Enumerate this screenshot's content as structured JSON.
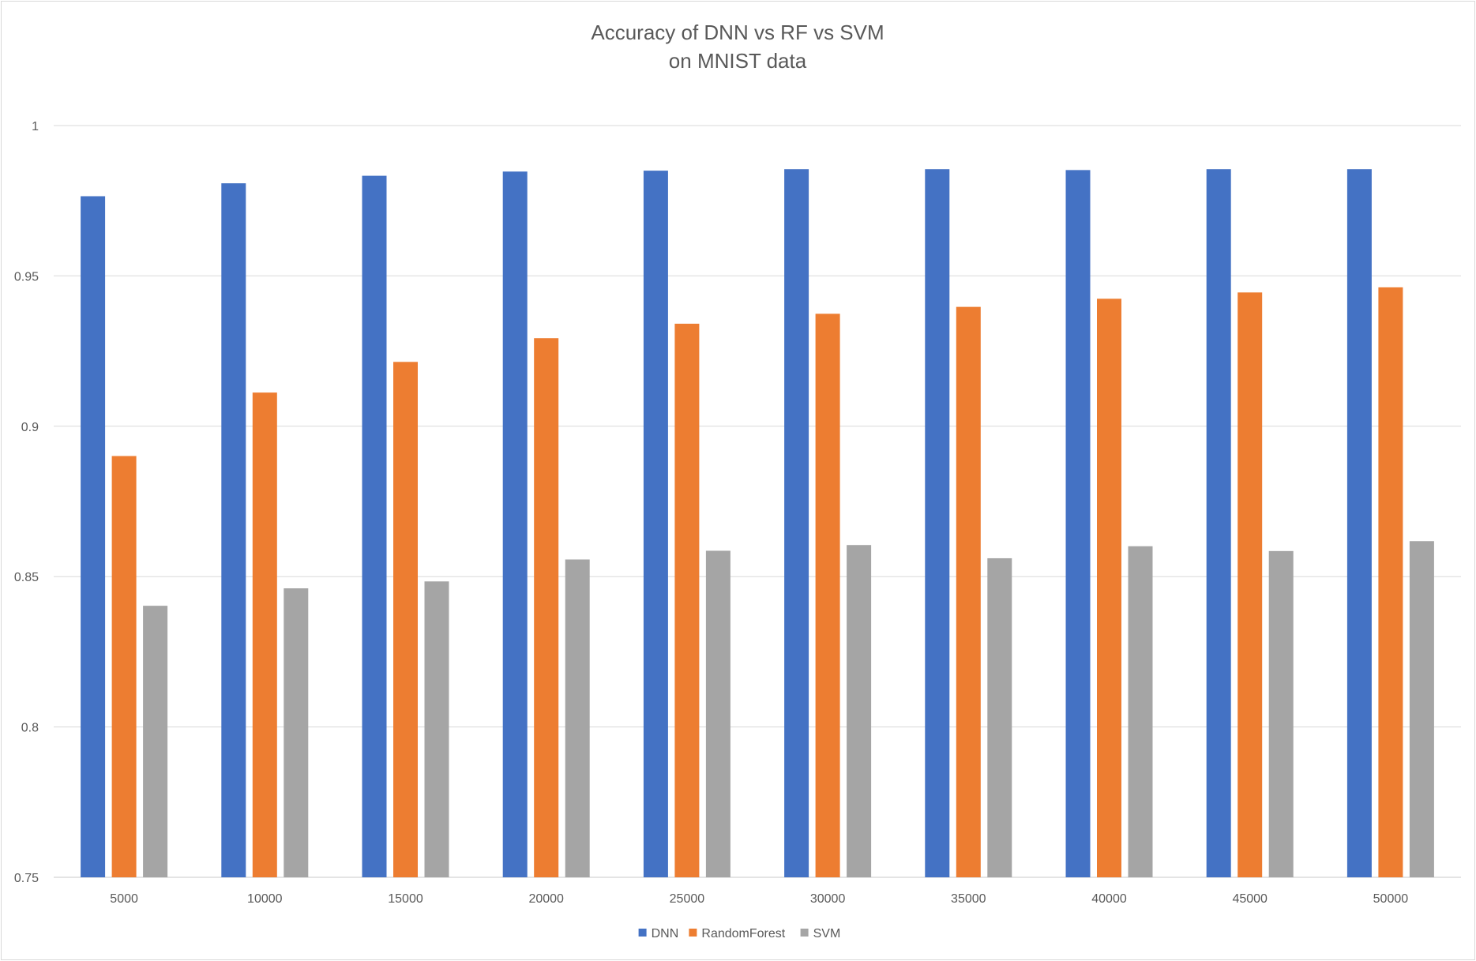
{
  "chart_data": {
    "type": "bar",
    "title": "Accuracy of DNN vs RF vs SVM",
    "subtitle": "on MNIST data",
    "xlabel": "",
    "ylabel": "",
    "categories": [
      "5000",
      "10000",
      "15000",
      "20000",
      "25000",
      "30000",
      "35000",
      "40000",
      "45000",
      "50000"
    ],
    "ylim": [
      0.75,
      1
    ],
    "yticks": [
      0.75,
      0.8,
      0.85,
      0.9,
      0.95,
      1
    ],
    "ytick_labels": [
      "0.75",
      "0.8",
      "0.85",
      "0.9",
      "0.95",
      "1"
    ],
    "grid": true,
    "legend_position": "bottom",
    "series": [
      {
        "name": "DNN",
        "color": "#4472c4",
        "values": [
          0.9765,
          0.9808,
          0.9833,
          0.9847,
          0.985,
          0.9855,
          0.9855,
          0.9852,
          0.9855,
          0.9855
        ]
      },
      {
        "name": "RandomForest",
        "color": "#ed7d31",
        "values": [
          0.8901,
          0.9112,
          0.9214,
          0.9293,
          0.9341,
          0.9374,
          0.9397,
          0.9424,
          0.9445,
          0.9462
        ]
      },
      {
        "name": "SVM",
        "color": "#a5a5a5",
        "values": [
          0.8403,
          0.8461,
          0.8484,
          0.8557,
          0.8586,
          0.8605,
          0.8561,
          0.8601,
          0.8585,
          0.8618
        ]
      }
    ]
  }
}
